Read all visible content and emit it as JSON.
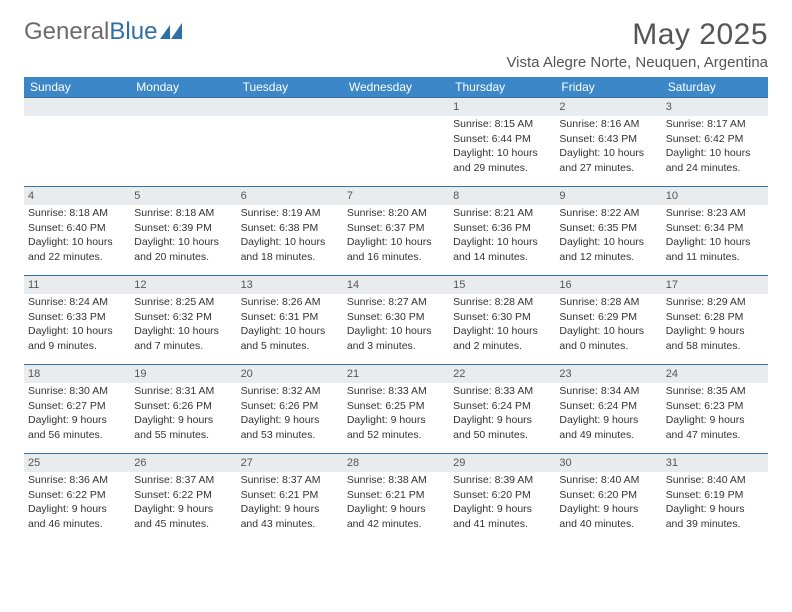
{
  "logo": {
    "text_gray": "General",
    "text_blue": "Blue"
  },
  "title": "May 2025",
  "location": "Vista Alegre Norte, Neuquen, Argentina",
  "colors": {
    "header_bar": "#3b87c8",
    "row_divider": "#3b6f9e",
    "daynum_bg": "#e9ecef",
    "text": "#333333",
    "title_text": "#555555"
  },
  "weekdays": [
    "Sunday",
    "Monday",
    "Tuesday",
    "Wednesday",
    "Thursday",
    "Friday",
    "Saturday"
  ],
  "weeks": [
    [
      {
        "n": "",
        "sr": "",
        "ss": "",
        "dl1": "",
        "dl2": ""
      },
      {
        "n": "",
        "sr": "",
        "ss": "",
        "dl1": "",
        "dl2": ""
      },
      {
        "n": "",
        "sr": "",
        "ss": "",
        "dl1": "",
        "dl2": ""
      },
      {
        "n": "",
        "sr": "",
        "ss": "",
        "dl1": "",
        "dl2": ""
      },
      {
        "n": "1",
        "sr": "Sunrise: 8:15 AM",
        "ss": "Sunset: 6:44 PM",
        "dl1": "Daylight: 10 hours",
        "dl2": "and 29 minutes."
      },
      {
        "n": "2",
        "sr": "Sunrise: 8:16 AM",
        "ss": "Sunset: 6:43 PM",
        "dl1": "Daylight: 10 hours",
        "dl2": "and 27 minutes."
      },
      {
        "n": "3",
        "sr": "Sunrise: 8:17 AM",
        "ss": "Sunset: 6:42 PM",
        "dl1": "Daylight: 10 hours",
        "dl2": "and 24 minutes."
      }
    ],
    [
      {
        "n": "4",
        "sr": "Sunrise: 8:18 AM",
        "ss": "Sunset: 6:40 PM",
        "dl1": "Daylight: 10 hours",
        "dl2": "and 22 minutes."
      },
      {
        "n": "5",
        "sr": "Sunrise: 8:18 AM",
        "ss": "Sunset: 6:39 PM",
        "dl1": "Daylight: 10 hours",
        "dl2": "and 20 minutes."
      },
      {
        "n": "6",
        "sr": "Sunrise: 8:19 AM",
        "ss": "Sunset: 6:38 PM",
        "dl1": "Daylight: 10 hours",
        "dl2": "and 18 minutes."
      },
      {
        "n": "7",
        "sr": "Sunrise: 8:20 AM",
        "ss": "Sunset: 6:37 PM",
        "dl1": "Daylight: 10 hours",
        "dl2": "and 16 minutes."
      },
      {
        "n": "8",
        "sr": "Sunrise: 8:21 AM",
        "ss": "Sunset: 6:36 PM",
        "dl1": "Daylight: 10 hours",
        "dl2": "and 14 minutes."
      },
      {
        "n": "9",
        "sr": "Sunrise: 8:22 AM",
        "ss": "Sunset: 6:35 PM",
        "dl1": "Daylight: 10 hours",
        "dl2": "and 12 minutes."
      },
      {
        "n": "10",
        "sr": "Sunrise: 8:23 AM",
        "ss": "Sunset: 6:34 PM",
        "dl1": "Daylight: 10 hours",
        "dl2": "and 11 minutes."
      }
    ],
    [
      {
        "n": "11",
        "sr": "Sunrise: 8:24 AM",
        "ss": "Sunset: 6:33 PM",
        "dl1": "Daylight: 10 hours",
        "dl2": "and 9 minutes."
      },
      {
        "n": "12",
        "sr": "Sunrise: 8:25 AM",
        "ss": "Sunset: 6:32 PM",
        "dl1": "Daylight: 10 hours",
        "dl2": "and 7 minutes."
      },
      {
        "n": "13",
        "sr": "Sunrise: 8:26 AM",
        "ss": "Sunset: 6:31 PM",
        "dl1": "Daylight: 10 hours",
        "dl2": "and 5 minutes."
      },
      {
        "n": "14",
        "sr": "Sunrise: 8:27 AM",
        "ss": "Sunset: 6:30 PM",
        "dl1": "Daylight: 10 hours",
        "dl2": "and 3 minutes."
      },
      {
        "n": "15",
        "sr": "Sunrise: 8:28 AM",
        "ss": "Sunset: 6:30 PM",
        "dl1": "Daylight: 10 hours",
        "dl2": "and 2 minutes."
      },
      {
        "n": "16",
        "sr": "Sunrise: 8:28 AM",
        "ss": "Sunset: 6:29 PM",
        "dl1": "Daylight: 10 hours",
        "dl2": "and 0 minutes."
      },
      {
        "n": "17",
        "sr": "Sunrise: 8:29 AM",
        "ss": "Sunset: 6:28 PM",
        "dl1": "Daylight: 9 hours",
        "dl2": "and 58 minutes."
      }
    ],
    [
      {
        "n": "18",
        "sr": "Sunrise: 8:30 AM",
        "ss": "Sunset: 6:27 PM",
        "dl1": "Daylight: 9 hours",
        "dl2": "and 56 minutes."
      },
      {
        "n": "19",
        "sr": "Sunrise: 8:31 AM",
        "ss": "Sunset: 6:26 PM",
        "dl1": "Daylight: 9 hours",
        "dl2": "and 55 minutes."
      },
      {
        "n": "20",
        "sr": "Sunrise: 8:32 AM",
        "ss": "Sunset: 6:26 PM",
        "dl1": "Daylight: 9 hours",
        "dl2": "and 53 minutes."
      },
      {
        "n": "21",
        "sr": "Sunrise: 8:33 AM",
        "ss": "Sunset: 6:25 PM",
        "dl1": "Daylight: 9 hours",
        "dl2": "and 52 minutes."
      },
      {
        "n": "22",
        "sr": "Sunrise: 8:33 AM",
        "ss": "Sunset: 6:24 PM",
        "dl1": "Daylight: 9 hours",
        "dl2": "and 50 minutes."
      },
      {
        "n": "23",
        "sr": "Sunrise: 8:34 AM",
        "ss": "Sunset: 6:24 PM",
        "dl1": "Daylight: 9 hours",
        "dl2": "and 49 minutes."
      },
      {
        "n": "24",
        "sr": "Sunrise: 8:35 AM",
        "ss": "Sunset: 6:23 PM",
        "dl1": "Daylight: 9 hours",
        "dl2": "and 47 minutes."
      }
    ],
    [
      {
        "n": "25",
        "sr": "Sunrise: 8:36 AM",
        "ss": "Sunset: 6:22 PM",
        "dl1": "Daylight: 9 hours",
        "dl2": "and 46 minutes."
      },
      {
        "n": "26",
        "sr": "Sunrise: 8:37 AM",
        "ss": "Sunset: 6:22 PM",
        "dl1": "Daylight: 9 hours",
        "dl2": "and 45 minutes."
      },
      {
        "n": "27",
        "sr": "Sunrise: 8:37 AM",
        "ss": "Sunset: 6:21 PM",
        "dl1": "Daylight: 9 hours",
        "dl2": "and 43 minutes."
      },
      {
        "n": "28",
        "sr": "Sunrise: 8:38 AM",
        "ss": "Sunset: 6:21 PM",
        "dl1": "Daylight: 9 hours",
        "dl2": "and 42 minutes."
      },
      {
        "n": "29",
        "sr": "Sunrise: 8:39 AM",
        "ss": "Sunset: 6:20 PM",
        "dl1": "Daylight: 9 hours",
        "dl2": "and 41 minutes."
      },
      {
        "n": "30",
        "sr": "Sunrise: 8:40 AM",
        "ss": "Sunset: 6:20 PM",
        "dl1": "Daylight: 9 hours",
        "dl2": "and 40 minutes."
      },
      {
        "n": "31",
        "sr": "Sunrise: 8:40 AM",
        "ss": "Sunset: 6:19 PM",
        "dl1": "Daylight: 9 hours",
        "dl2": "and 39 minutes."
      }
    ]
  ]
}
